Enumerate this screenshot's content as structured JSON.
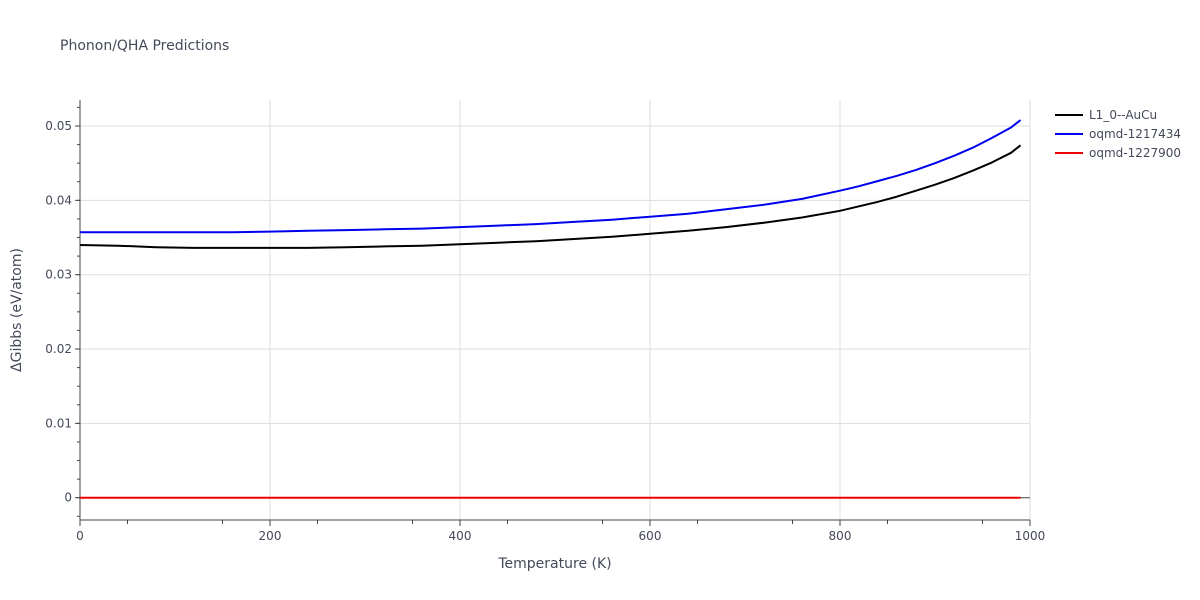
{
  "chart_data": {
    "type": "line",
    "title": "Phonon/QHA Predictions",
    "xlabel": "Temperature (K)",
    "ylabel": "ΔGibbs (eV/atom)",
    "xlim": [
      0,
      1000
    ],
    "ylim": [
      -0.003,
      0.0535
    ],
    "xticks": [
      0,
      200,
      400,
      600,
      800,
      1000
    ],
    "yticks": [
      0,
      0.01,
      0.02,
      0.03,
      0.04,
      0.05
    ],
    "xtick_labels": [
      "0",
      "200",
      "400",
      "600",
      "800",
      "1000"
    ],
    "ytick_labels": [
      "0",
      "0.01",
      "0.02",
      "0.03",
      "0.04",
      "0.05"
    ],
    "grid": true,
    "legend_position": "top-right",
    "series": [
      {
        "name": "L1_0--AuCu",
        "color": "#000000",
        "x": [
          0,
          40,
          80,
          120,
          160,
          200,
          240,
          280,
          320,
          360,
          400,
          440,
          480,
          520,
          560,
          600,
          640,
          680,
          720,
          760,
          800,
          820,
          840,
          860,
          880,
          900,
          920,
          940,
          960,
          980,
          990
        ],
        "y": [
          0.034,
          0.0339,
          0.0337,
          0.0336,
          0.0336,
          0.0336,
          0.0336,
          0.0337,
          0.0338,
          0.0339,
          0.0341,
          0.0343,
          0.0345,
          0.0348,
          0.0351,
          0.0355,
          0.0359,
          0.0364,
          0.037,
          0.0377,
          0.0386,
          0.0392,
          0.0398,
          0.0405,
          0.0413,
          0.0421,
          0.043,
          0.044,
          0.0451,
          0.0464,
          0.0474
        ]
      },
      {
        "name": "oqmd-1217434",
        "color": "#0000ee",
        "x": [
          0,
          40,
          80,
          120,
          160,
          200,
          240,
          280,
          320,
          360,
          400,
          440,
          480,
          520,
          560,
          600,
          640,
          680,
          720,
          760,
          800,
          820,
          840,
          860,
          880,
          900,
          920,
          940,
          960,
          980,
          990
        ],
        "y": [
          0.0357,
          0.0357,
          0.0357,
          0.0357,
          0.0357,
          0.0358,
          0.0359,
          0.036,
          0.0361,
          0.0362,
          0.0364,
          0.0366,
          0.0368,
          0.0371,
          0.0374,
          0.0378,
          0.0382,
          0.0388,
          0.0394,
          0.0402,
          0.0413,
          0.0419,
          0.0426,
          0.0433,
          0.0441,
          0.045,
          0.046,
          0.0471,
          0.0484,
          0.0498,
          0.0508
        ]
      },
      {
        "name": "oqmd-1227900",
        "color": "#ee0000",
        "x": [
          0,
          990
        ],
        "y": [
          0,
          0
        ]
      }
    ]
  }
}
